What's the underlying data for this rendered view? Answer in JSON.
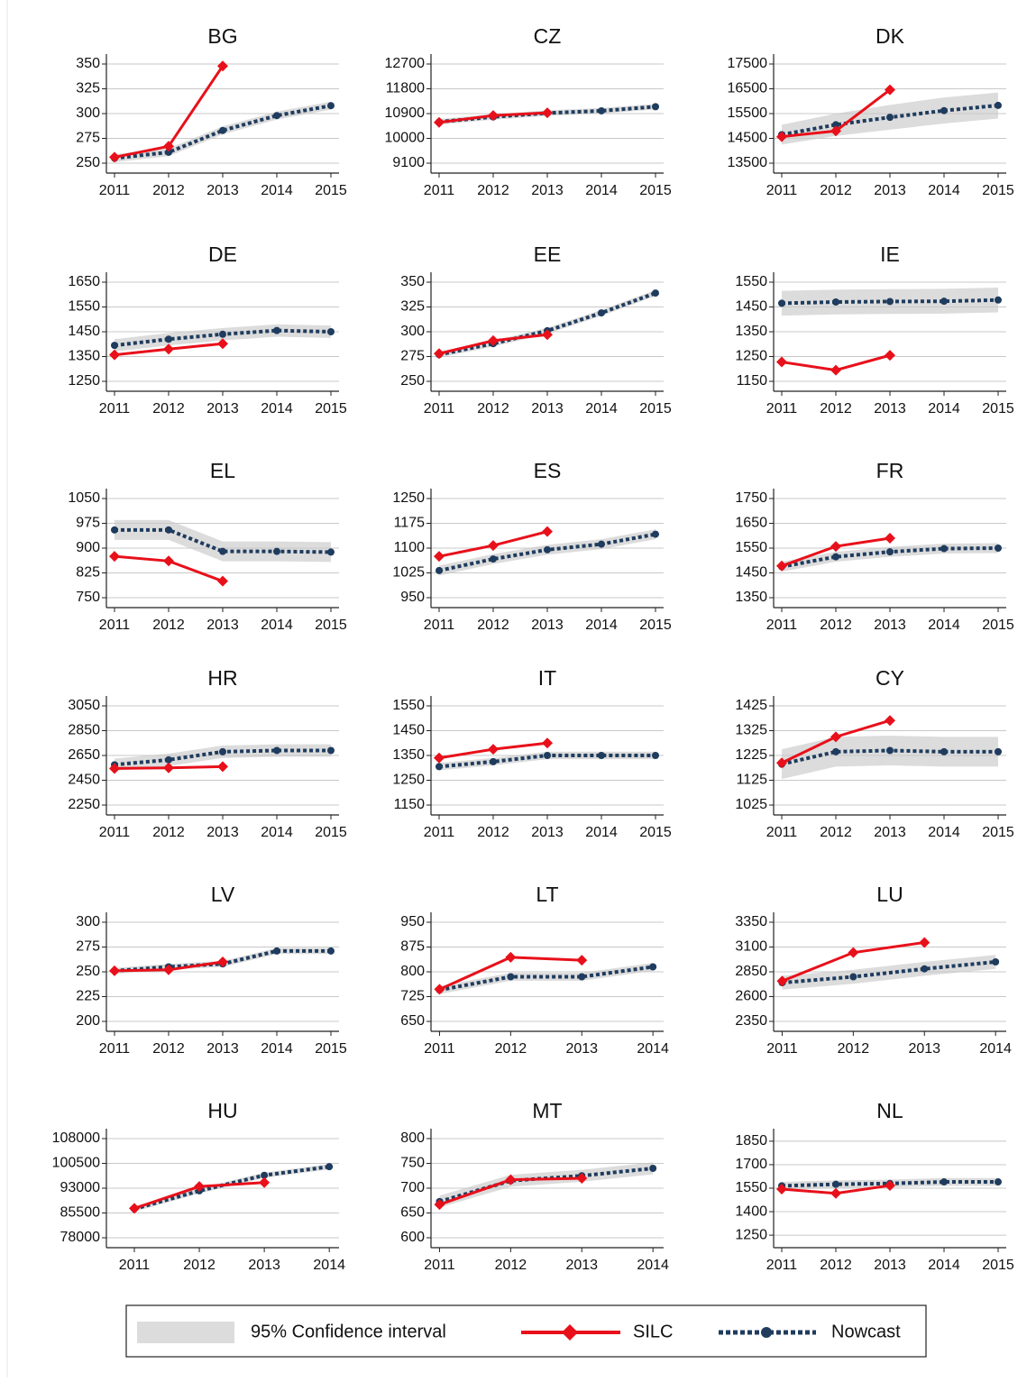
{
  "legend": [
    {
      "name": "95% Confidence interval",
      "color": "#dcdcdc"
    },
    {
      "name": "SILC",
      "color": "#e8101a"
    },
    {
      "name": "Nowcast",
      "color": "#1f3c5e"
    }
  ],
  "chart_data": [
    {
      "type": "line",
      "title": "BG",
      "x": [
        2011,
        2012,
        2013,
        2014,
        2015
      ],
      "xlim": [
        2010.85,
        2015.15
      ],
      "xticks": [
        2011,
        2012,
        2013,
        2014,
        2015
      ],
      "ylim": [
        240,
        360
      ],
      "yticks": [
        250,
        275,
        300,
        325,
        350
      ],
      "series": [
        {
          "values": [
            256,
            267,
            348,
            null,
            null
          ]
        },
        {
          "values": [
            255,
            261,
            283,
            298,
            308
          ]
        }
      ],
      "ci": {
        "low": [
          251,
          257,
          279,
          294,
          304
        ],
        "high": [
          259,
          265,
          287,
          302,
          312
        ]
      }
    },
    {
      "type": "line",
      "title": "CZ",
      "x": [
        2011,
        2012,
        2013,
        2014,
        2015
      ],
      "xlim": [
        2010.85,
        2015.15
      ],
      "xticks": [
        2011,
        2012,
        2013,
        2014,
        2015
      ],
      "ylim": [
        8740,
        13060
      ],
      "yticks": [
        9100,
        10000,
        10900,
        11800,
        12700
      ],
      "series": [
        {
          "values": [
            10580,
            10830,
            10930,
            null,
            null
          ]
        },
        {
          "values": [
            10600,
            10780,
            10920,
            11000,
            11150
          ]
        }
      ],
      "ci": {
        "low": [
          10500,
          10680,
          10820,
          10900,
          11050
        ],
        "high": [
          10700,
          10880,
          11020,
          11100,
          11250
        ]
      }
    },
    {
      "type": "line",
      "title": "DK",
      "x": [
        2011,
        2012,
        2013,
        2014,
        2015
      ],
      "xlim": [
        2010.85,
        2015.15
      ],
      "xticks": [
        2011,
        2012,
        2013,
        2014,
        2015
      ],
      "ylim": [
        13100,
        17900
      ],
      "yticks": [
        13500,
        14500,
        15500,
        16500,
        17500
      ],
      "series": [
        {
          "values": [
            14570,
            14800,
            16460,
            null,
            null
          ]
        },
        {
          "values": [
            14650,
            15050,
            15350,
            15620,
            15830
          ]
        }
      ],
      "ci": {
        "low": [
          14250,
          14600,
          14850,
          15100,
          15300
        ],
        "high": [
          15050,
          15500,
          15850,
          16150,
          16350
        ]
      }
    },
    {
      "type": "line",
      "title": "DE",
      "x": [
        2011,
        2012,
        2013,
        2014,
        2015
      ],
      "xlim": [
        2010.85,
        2015.15
      ],
      "xticks": [
        2011,
        2012,
        2013,
        2014,
        2015
      ],
      "ylim": [
        1210,
        1690
      ],
      "yticks": [
        1250,
        1350,
        1450,
        1550,
        1650
      ],
      "series": [
        {
          "values": [
            1357,
            1380,
            1402,
            null,
            null
          ]
        },
        {
          "values": [
            1395,
            1420,
            1440,
            1455,
            1450
          ]
        }
      ],
      "ci": {
        "low": [
          1370,
          1395,
          1415,
          1430,
          1425
        ],
        "high": [
          1420,
          1445,
          1465,
          1480,
          1475
        ]
      }
    },
    {
      "type": "line",
      "title": "EE",
      "x": [
        2011,
        2012,
        2013,
        2014,
        2015
      ],
      "xlim": [
        2010.85,
        2015.15
      ],
      "xticks": [
        2011,
        2012,
        2013,
        2014,
        2015
      ],
      "ylim": [
        240,
        360
      ],
      "yticks": [
        250,
        275,
        300,
        325,
        350
      ],
      "series": [
        {
          "values": [
            278,
            291,
            297,
            null,
            null
          ]
        },
        {
          "values": [
            277,
            288,
            301,
            319,
            339
          ]
        }
      ],
      "ci": {
        "low": [
          274,
          285,
          298,
          316,
          336
        ],
        "high": [
          280,
          291,
          304,
          322,
          342
        ]
      }
    },
    {
      "type": "line",
      "title": "IE",
      "x": [
        2011,
        2012,
        2013,
        2014,
        2015
      ],
      "xlim": [
        2010.85,
        2015.15
      ],
      "xticks": [
        2011,
        2012,
        2013,
        2014,
        2015
      ],
      "ylim": [
        1110,
        1590
      ],
      "yticks": [
        1150,
        1250,
        1350,
        1450,
        1550
      ],
      "series": [
        {
          "values": [
            1228,
            1195,
            1255,
            null,
            null
          ]
        },
        {
          "values": [
            1465,
            1470,
            1472,
            1473,
            1478
          ]
        }
      ],
      "ci": {
        "low": [
          1415,
          1420,
          1422,
          1423,
          1428
        ],
        "high": [
          1515,
          1520,
          1522,
          1523,
          1528
        ]
      }
    },
    {
      "type": "line",
      "title": "EL",
      "x": [
        2011,
        2012,
        2013,
        2014,
        2015
      ],
      "xlim": [
        2010.85,
        2015.15
      ],
      "xticks": [
        2011,
        2012,
        2013,
        2014,
        2015
      ],
      "ylim": [
        720,
        1080
      ],
      "yticks": [
        750,
        825,
        900,
        975,
        1050
      ],
      "series": [
        {
          "values": [
            875,
            861,
            800,
            null,
            null
          ]
        },
        {
          "values": [
            955,
            955,
            890,
            890,
            888
          ]
        }
      ],
      "ci": {
        "low": [
          925,
          925,
          860,
          860,
          858
        ],
        "high": [
          985,
          985,
          920,
          920,
          918
        ]
      }
    },
    {
      "type": "line",
      "title": "ES",
      "x": [
        2011,
        2012,
        2013,
        2014,
        2015
      ],
      "xlim": [
        2010.85,
        2015.15
      ],
      "xticks": [
        2011,
        2012,
        2013,
        2014,
        2015
      ],
      "ylim": [
        920,
        1280
      ],
      "yticks": [
        950,
        1025,
        1100,
        1175,
        1250
      ],
      "series": [
        {
          "values": [
            1075,
            1108,
            1150,
            null,
            null
          ]
        },
        {
          "values": [
            1032,
            1067,
            1095,
            1112,
            1142
          ]
        }
      ],
      "ci": {
        "low": [
          1017,
          1052,
          1080,
          1097,
          1127
        ],
        "high": [
          1047,
          1082,
          1110,
          1127,
          1157
        ]
      }
    },
    {
      "type": "line",
      "title": "FR",
      "x": [
        2011,
        2012,
        2013,
        2014,
        2015
      ],
      "xlim": [
        2010.85,
        2015.15
      ],
      "xticks": [
        2011,
        2012,
        2013,
        2014,
        2015
      ],
      "ylim": [
        1310,
        1790
      ],
      "yticks": [
        1350,
        1450,
        1550,
        1650,
        1750
      ],
      "series": [
        {
          "values": [
            1478,
            1557,
            1590,
            null,
            null
          ]
        },
        {
          "values": [
            1475,
            1515,
            1535,
            1548,
            1550
          ]
        }
      ],
      "ci": {
        "low": [
          1455,
          1495,
          1515,
          1528,
          1530
        ],
        "high": [
          1495,
          1535,
          1555,
          1568,
          1570
        ]
      }
    },
    {
      "type": "line",
      "title": "HR",
      "x": [
        2011,
        2012,
        2013,
        2014,
        2015
      ],
      "xlim": [
        2010.85,
        2015.15
      ],
      "xticks": [
        2011,
        2012,
        2013,
        2014,
        2015
      ],
      "ylim": [
        2170,
        3130
      ],
      "yticks": [
        2250,
        2450,
        2650,
        2850,
        3050
      ],
      "series": [
        {
          "values": [
            2545,
            2550,
            2560,
            null,
            null
          ]
        },
        {
          "values": [
            2575,
            2615,
            2680,
            2690,
            2690
          ]
        }
      ],
      "ci": {
        "low": [
          2525,
          2565,
          2630,
          2640,
          2640
        ],
        "high": [
          2625,
          2665,
          2730,
          2740,
          2740
        ]
      }
    },
    {
      "type": "line",
      "title": "IT",
      "x": [
        2011,
        2012,
        2013,
        2014,
        2015
      ],
      "xlim": [
        2010.85,
        2015.15
      ],
      "xticks": [
        2011,
        2012,
        2013,
        2014,
        2015
      ],
      "ylim": [
        1110,
        1590
      ],
      "yticks": [
        1150,
        1250,
        1350,
        1450,
        1550
      ],
      "series": [
        {
          "values": [
            1340,
            1375,
            1400,
            null,
            null
          ]
        },
        {
          "values": [
            1305,
            1325,
            1350,
            1350,
            1350
          ]
        }
      ],
      "ci": {
        "low": [
          1290,
          1310,
          1335,
          1335,
          1335
        ],
        "high": [
          1320,
          1340,
          1365,
          1365,
          1365
        ]
      }
    },
    {
      "type": "line",
      "title": "CY",
      "x": [
        2011,
        2012,
        2013,
        2014,
        2015
      ],
      "xlim": [
        2010.85,
        2015.15
      ],
      "xticks": [
        2011,
        2012,
        2013,
        2014,
        2015
      ],
      "ylim": [
        985,
        1465
      ],
      "yticks": [
        1025,
        1125,
        1225,
        1325,
        1425
      ],
      "series": [
        {
          "values": [
            1195,
            1300,
            1366,
            null,
            null
          ]
        },
        {
          "values": [
            1190,
            1240,
            1245,
            1240,
            1240
          ]
        }
      ],
      "ci": {
        "low": [
          1130,
          1180,
          1185,
          1180,
          1180
        ],
        "high": [
          1250,
          1300,
          1305,
          1300,
          1300
        ]
      }
    },
    {
      "type": "line",
      "title": "LV",
      "x": [
        2011,
        2012,
        2013,
        2014,
        2015
      ],
      "xlim": [
        2010.85,
        2015.15
      ],
      "xticks": [
        2011,
        2012,
        2013,
        2014,
        2015
      ],
      "ylim": [
        190,
        310
      ],
      "yticks": [
        200,
        225,
        250,
        275,
        300
      ],
      "series": [
        {
          "values": [
            251,
            252,
            260,
            null,
            null
          ]
        },
        {
          "values": [
            251,
            255,
            258,
            271,
            271
          ]
        }
      ],
      "ci": {
        "low": [
          248,
          252,
          255,
          268,
          268
        ],
        "high": [
          254,
          258,
          261,
          274,
          274
        ]
      }
    },
    {
      "type": "line",
      "title": "LT",
      "x": [
        2011,
        2012,
        2013,
        2014
      ],
      "xlim": [
        2010.88,
        2014.15
      ],
      "xticks": [
        2011,
        2012,
        2013,
        2014
      ],
      "ylim": [
        620,
        980
      ],
      "yticks": [
        650,
        725,
        800,
        875,
        950
      ],
      "series": [
        {
          "values": [
            747,
            844,
            835,
            null
          ]
        },
        {
          "values": [
            745,
            785,
            785,
            815
          ]
        }
      ],
      "ci": {
        "low": [
          733,
          773,
          773,
          803
        ],
        "high": [
          757,
          797,
          797,
          827
        ]
      }
    },
    {
      "type": "line",
      "title": "LU",
      "x": [
        2011,
        2012,
        2013,
        2014
      ],
      "xlim": [
        2010.88,
        2014.15
      ],
      "xticks": [
        2011,
        2012,
        2013,
        2014
      ],
      "ylim": [
        2250,
        3450
      ],
      "yticks": [
        2350,
        2600,
        2850,
        3100,
        3350
      ],
      "series": [
        {
          "values": [
            2757,
            3044,
            3146,
            null
          ]
        },
        {
          "values": [
            2740,
            2800,
            2880,
            2950
          ]
        }
      ],
      "ci": {
        "low": [
          2670,
          2730,
          2810,
          2880
        ],
        "high": [
          2810,
          2870,
          2950,
          3020
        ]
      }
    },
    {
      "type": "line",
      "title": "HU",
      "x": [
        2011,
        2012,
        2013,
        2014
      ],
      "xlim": [
        2010.57,
        2014.15
      ],
      "xticks": [
        2011,
        2012,
        2013,
        2014
      ],
      "ylim": [
        75000,
        111000
      ],
      "yticks": [
        78000,
        85500,
        93000,
        100500,
        108000
      ],
      "series": [
        {
          "values": [
            86900,
            93500,
            94700,
            null
          ]
        },
        {
          "values": [
            86700,
            92200,
            96900,
            99500
          ]
        }
      ],
      "ci": {
        "low": [
          85900,
          91400,
          96100,
          98700
        ],
        "high": [
          87500,
          93000,
          97700,
          100300
        ]
      }
    },
    {
      "type": "line",
      "title": "MT",
      "x": [
        2011,
        2012,
        2013,
        2014
      ],
      "xlim": [
        2010.88,
        2014.15
      ],
      "xticks": [
        2011,
        2012,
        2013,
        2014
      ],
      "ylim": [
        580,
        820
      ],
      "yticks": [
        600,
        650,
        700,
        750,
        800
      ],
      "series": [
        {
          "values": [
            667,
            717,
            720,
            null
          ]
        },
        {
          "values": [
            673,
            715,
            725,
            740
          ]
        }
      ],
      "ci": {
        "low": [
          661,
          703,
          713,
          728
        ],
        "high": [
          685,
          727,
          737,
          752
        ]
      }
    },
    {
      "type": "line",
      "title": "NL",
      "x": [
        2011,
        2012,
        2013,
        2014,
        2015
      ],
      "xlim": [
        2010.85,
        2015.15
      ],
      "xticks": [
        2011,
        2012,
        2013,
        2014,
        2015
      ],
      "ylim": [
        1170,
        1930
      ],
      "yticks": [
        1250,
        1400,
        1550,
        1700,
        1850
      ],
      "series": [
        {
          "values": [
            1544,
            1517,
            1567,
            null,
            null
          ]
        },
        {
          "values": [
            1565,
            1575,
            1580,
            1590,
            1590
          ]
        }
      ],
      "ci": {
        "low": [
          1540,
          1550,
          1555,
          1565,
          1565
        ],
        "high": [
          1590,
          1600,
          1605,
          1615,
          1615
        ]
      }
    }
  ]
}
